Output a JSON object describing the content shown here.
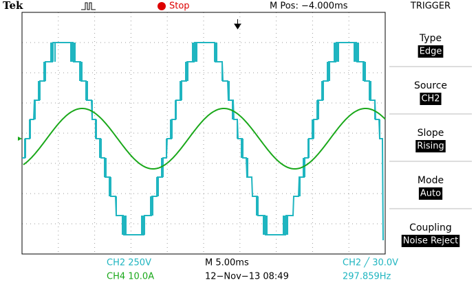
{
  "header": {
    "brand": "Tek",
    "status": "Stop",
    "position": "M Pos: −4.000ms",
    "menu_title": "TRIGGER"
  },
  "menu": [
    {
      "label": "Type",
      "value": "Edge"
    },
    {
      "label": "Source",
      "value": "CH2"
    },
    {
      "label": "Slope",
      "value": "Rising"
    },
    {
      "label": "Mode",
      "value": "Auto"
    },
    {
      "label": "Coupling",
      "value": "Noise Reject"
    }
  ],
  "footer": {
    "ch2_scale": "CH2  250V",
    "ch4_scale": "CH4  10.0A",
    "timebase": "M 5.00ms",
    "datetime": "12−Nov−13 08:49",
    "trigger_level": "CH2 ╱ 30.0V",
    "frequency": "297.859Hz"
  }
}
